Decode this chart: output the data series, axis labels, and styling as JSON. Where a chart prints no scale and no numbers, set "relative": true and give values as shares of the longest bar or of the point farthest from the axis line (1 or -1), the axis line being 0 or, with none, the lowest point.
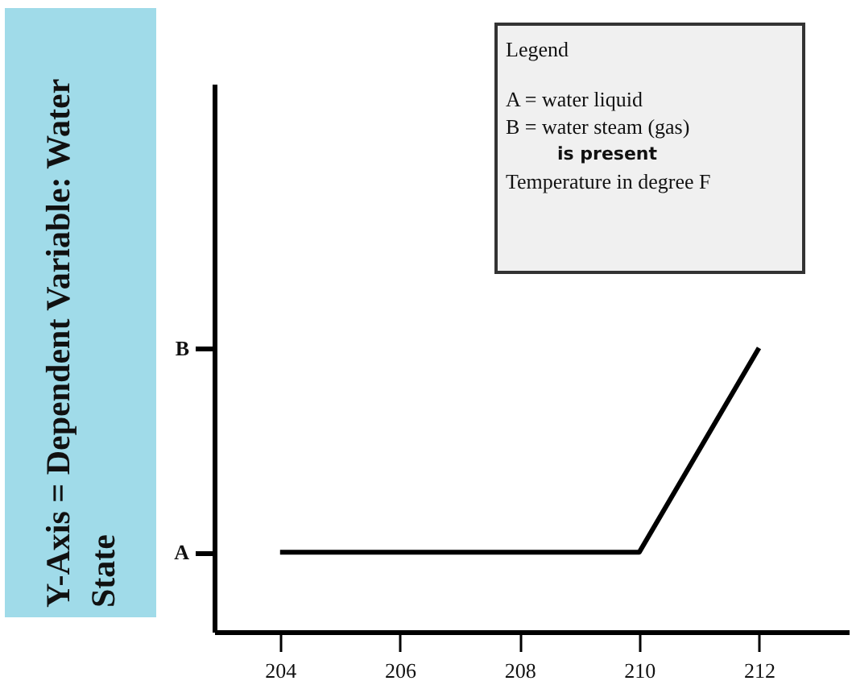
{
  "chart_data": {
    "type": "line",
    "ylabel": "Y-Axis = Dependent Variable: Water State",
    "relative": true,
    "annotations": [
      "Legend",
      "A = water liquid",
      "B = water steam (gas)",
      "is present",
      "Temperature in degree F",
      "A",
      "B"
    ],
    "x": [
      204,
      210,
      212
    ],
    "series": [
      {
        "color": "#000000",
        "values": [
          0.28,
          0.28,
          1
        ]
      }
    ],
    "xlim": [
      202.9,
      213.5
    ],
    "xticks": [
      204,
      206,
      208,
      210,
      212
    ],
    "grid": false,
    "marker": "none",
    "line_style": "solid"
  }
}
